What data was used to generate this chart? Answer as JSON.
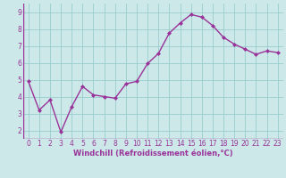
{
  "x": [
    0,
    1,
    2,
    3,
    4,
    5,
    6,
    7,
    8,
    9,
    10,
    11,
    12,
    13,
    14,
    15,
    16,
    17,
    18,
    19,
    20,
    21,
    22,
    23
  ],
  "y": [
    4.9,
    3.2,
    3.8,
    1.9,
    3.4,
    4.6,
    4.1,
    4.0,
    3.9,
    4.75,
    4.9,
    5.95,
    6.55,
    7.75,
    8.35,
    8.85,
    8.7,
    8.2,
    7.5,
    7.1,
    6.8,
    6.5,
    6.7,
    6.6
  ],
  "line_color": "#993399",
  "marker": "D",
  "marker_size": 2,
  "line_width": 1.0,
  "bg_color": "#cce8e8",
  "grid_color": "#99cccc",
  "xlabel": "Windchill (Refroidissement éolien,°C)",
  "xlabel_color": "#993399",
  "tick_color": "#993399",
  "ylim": [
    1.5,
    9.5
  ],
  "xlim": [
    -0.5,
    23.5
  ],
  "yticks": [
    2,
    3,
    4,
    5,
    6,
    7,
    8,
    9
  ],
  "xticks": [
    0,
    1,
    2,
    3,
    4,
    5,
    6,
    7,
    8,
    9,
    10,
    11,
    12,
    13,
    14,
    15,
    16,
    17,
    18,
    19,
    20,
    21,
    22,
    23
  ],
  "tick_fontsize": 5.5,
  "xlabel_fontsize": 6.0
}
